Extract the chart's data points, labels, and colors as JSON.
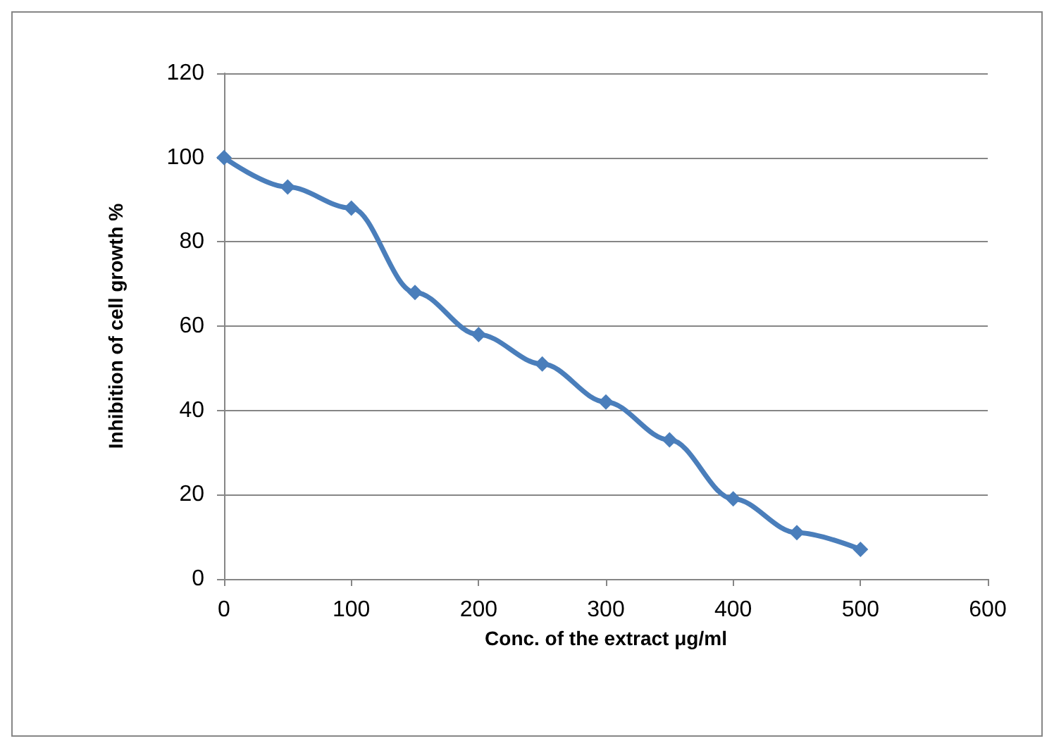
{
  "chart_data": {
    "type": "line",
    "xlabel": "Conc. of the extract μg/ml",
    "ylabel": "Inhibition of cell growth %",
    "x": [
      0,
      50,
      100,
      150,
      200,
      250,
      300,
      350,
      400,
      450,
      500
    ],
    "series": [
      {
        "color": "#4a7ebb",
        "values": [
          100,
          93,
          88,
          68,
          58,
          51,
          42,
          33,
          19,
          11,
          7
        ]
      }
    ],
    "xlim": [
      0,
      600
    ],
    "xticks": [
      0,
      100,
      200,
      300,
      400,
      500,
      600
    ],
    "ylim": [
      0,
      120
    ],
    "yticks": [
      0,
      20,
      40,
      60,
      80,
      100,
      120
    ],
    "grid": "y",
    "marker": "diamond",
    "line_style": "solid"
  }
}
